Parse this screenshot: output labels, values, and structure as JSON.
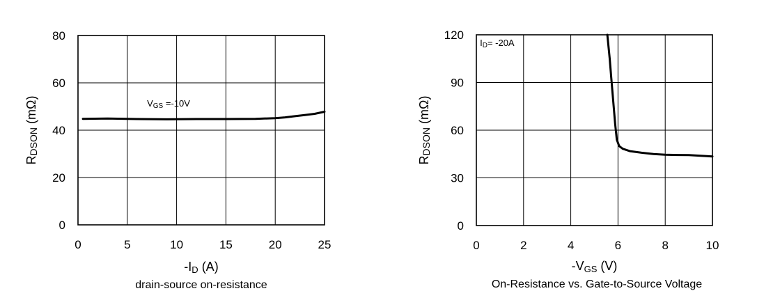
{
  "chart_data": [
    {
      "type": "line",
      "caption": "drain-source on-resistance",
      "xlabel": {
        "prefix": "-I",
        "sub": "D",
        "suffix": "  (A)"
      },
      "ylabel": {
        "main": "R",
        "sub": "DSON",
        "suffix": " (mΩ)"
      },
      "xlim": [
        0,
        25
      ],
      "ylim": [
        0,
        80
      ],
      "xticks": [
        0,
        5,
        10,
        15,
        20,
        25
      ],
      "yticks": [
        0,
        20,
        40,
        60,
        80
      ],
      "grid": true,
      "annotation": {
        "main": "V",
        "sub": "GS",
        "suffix": " =-10V",
        "at": [
          7,
          50
        ]
      },
      "series": [
        {
          "x": [
            0.5,
            3,
            6,
            9,
            12,
            15,
            18,
            20,
            21,
            22,
            23,
            24,
            25
          ],
          "y": [
            44.8,
            44.9,
            44.7,
            44.6,
            44.7,
            44.7,
            44.8,
            45.1,
            45.4,
            45.9,
            46.4,
            46.9,
            47.8
          ]
        }
      ]
    },
    {
      "type": "line",
      "caption": "On-Resistance vs. Gate-to-Source Voltage",
      "xlabel": {
        "prefix": "-V",
        "sub": "GS",
        "suffix": " (V)"
      },
      "ylabel": {
        "main": "R",
        "sub": "DSON",
        "suffix": " (mΩ)"
      },
      "xlim": [
        0,
        10
      ],
      "ylim": [
        0,
        120
      ],
      "xticks": [
        0,
        2,
        4,
        6,
        8,
        10
      ],
      "yticks": [
        0,
        30,
        60,
        90,
        120
      ],
      "grid": true,
      "annotation": {
        "main": "I",
        "sub": "D",
        "suffix": "= -20A",
        "at": [
          0.15,
          113
        ]
      },
      "series": [
        {
          "x": [
            5.55,
            5.65,
            5.72,
            5.8,
            5.88,
            5.95,
            6.05,
            6.2,
            6.5,
            7,
            7.5,
            8,
            8.5,
            9,
            9.5,
            10
          ],
          "y": [
            120,
            105,
            92,
            78,
            64,
            54,
            50,
            48.3,
            46.8,
            45.8,
            45.0,
            44.6,
            44.4,
            44.3,
            43.9,
            43.5
          ]
        }
      ]
    }
  ]
}
